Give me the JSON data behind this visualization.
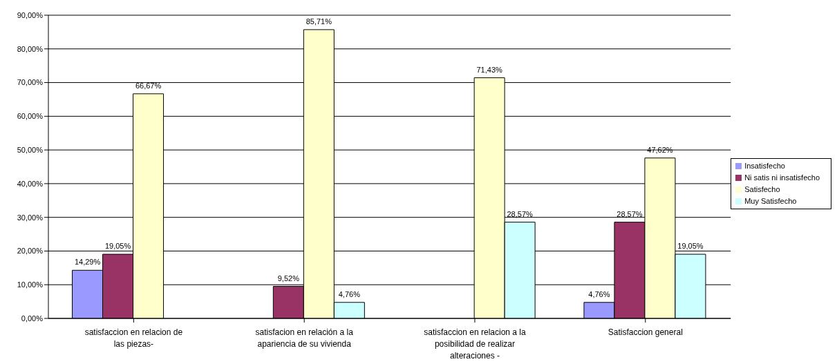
{
  "chart_data": {
    "type": "bar",
    "categories": [
      "satisfaccion en relacion de las piezas-",
      "satisfacion en relación a la apariencia de su vivienda",
      "satisfaccion en relacion a la posibilidad de realizar alteraciones -",
      "Satisfaccion general"
    ],
    "series": [
      {
        "name": "Insatisfecho",
        "color": "#9999ff",
        "values": [
          14.29,
          null,
          null,
          4.76
        ],
        "value_labels": [
          "14,29%",
          null,
          null,
          "4,76%"
        ]
      },
      {
        "name": "Ni satis ni insatisfecho",
        "color": "#993366",
        "values": [
          19.05,
          9.52,
          null,
          28.57
        ],
        "value_labels": [
          "19,05%",
          "9,52%",
          null,
          "28,57%"
        ]
      },
      {
        "name": "Satisfecho",
        "color": "#ffffcc",
        "values": [
          66.67,
          85.71,
          71.43,
          47.62
        ],
        "value_labels": [
          "66,67%",
          "85,71%",
          "71,43%",
          "47,62%"
        ]
      },
      {
        "name": "Muy Satisfecho",
        "color": "#ccffff",
        "values": [
          null,
          4.76,
          28.57,
          19.05
        ],
        "value_labels": [
          null,
          "4,76%",
          "28,57%",
          "19,05%"
        ]
      }
    ],
    "ylim": [
      0,
      90
    ],
    "yticks": [
      {
        "value": 0,
        "label": "0,00%"
      },
      {
        "value": 10,
        "label": "10,00%"
      },
      {
        "value": 20,
        "label": "20,00%"
      },
      {
        "value": 30,
        "label": "30,00%"
      },
      {
        "value": 40,
        "label": "40,00%"
      },
      {
        "value": 50,
        "label": "50,00%"
      },
      {
        "value": 60,
        "label": "60,00%"
      },
      {
        "value": 70,
        "label": "70,00%"
      },
      {
        "value": 80,
        "label": "80,00%"
      },
      {
        "value": 90,
        "label": "90,00%"
      }
    ],
    "grid": "y",
    "legend": "right"
  }
}
